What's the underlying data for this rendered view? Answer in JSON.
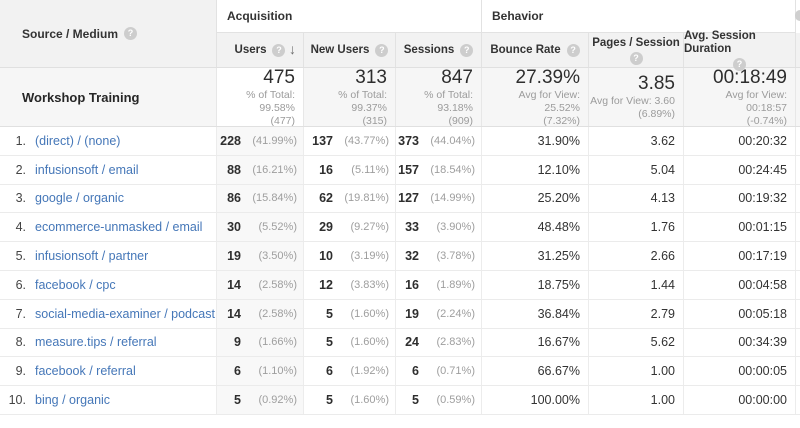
{
  "accent_colors": {
    "link_blue": "#4577b8",
    "header_gray": "#f2f2f2",
    "totals_gray": "#f6f6f6"
  },
  "table": {
    "dimension_header": "Source / Medium",
    "groups": {
      "acquisition": "Acquisition",
      "behavior": "Behavior"
    },
    "columns": {
      "users": "Users",
      "new_users": "New Users",
      "sessions": "Sessions",
      "bounce_rate": "Bounce Rate",
      "pages_session": "Pages / Session",
      "avg_duration": "Avg. Session Duration"
    },
    "sort": {
      "column": "users",
      "direction": "descending",
      "arrow": "↓"
    },
    "help_icon": "?",
    "totals": {
      "label": "Workshop Training",
      "users": {
        "value": "475",
        "sub1": "% of Total: 99.58%",
        "sub2": "(477)"
      },
      "new_users": {
        "value": "313",
        "sub1": "% of Total: 99.37%",
        "sub2": "(315)"
      },
      "sessions": {
        "value": "847",
        "sub1": "% of Total: 93.18%",
        "sub2": "(909)"
      },
      "bounce_rate": {
        "value": "27.39%",
        "sub1": "Avg for View: 25.52%",
        "sub2": "(7.32%)"
      },
      "pages_session": {
        "value": "3.85",
        "sub1": "Avg for View: 3.60",
        "sub2": "(6.89%)"
      },
      "avg_duration": {
        "value": "00:18:49",
        "sub1": "Avg for View: 00:18:57",
        "sub2": "(-0.74%)"
      }
    },
    "rows": [
      {
        "rank": "1.",
        "source": "(direct) / (none)",
        "users": "228",
        "users_pct": "(41.99%)",
        "new_users": "137",
        "new_users_pct": "(43.77%)",
        "sessions": "373",
        "sessions_pct": "(44.04%)",
        "bounce_rate": "31.90%",
        "pages_per_session": "3.62",
        "avg_duration": "00:20:32"
      },
      {
        "rank": "2.",
        "source": "infusionsoft / email",
        "users": "88",
        "users_pct": "(16.21%)",
        "new_users": "16",
        "new_users_pct": "(5.11%)",
        "sessions": "157",
        "sessions_pct": "(18.54%)",
        "bounce_rate": "12.10%",
        "pages_per_session": "5.04",
        "avg_duration": "00:24:45"
      },
      {
        "rank": "3.",
        "source": "google / organic",
        "users": "86",
        "users_pct": "(15.84%)",
        "new_users": "62",
        "new_users_pct": "(19.81%)",
        "sessions": "127",
        "sessions_pct": "(14.99%)",
        "bounce_rate": "25.20%",
        "pages_per_session": "4.13",
        "avg_duration": "00:19:32"
      },
      {
        "rank": "4.",
        "source": "ecommerce-unmasked / email",
        "users": "30",
        "users_pct": "(5.52%)",
        "new_users": "29",
        "new_users_pct": "(9.27%)",
        "sessions": "33",
        "sessions_pct": "(3.90%)",
        "bounce_rate": "48.48%",
        "pages_per_session": "1.76",
        "avg_duration": "00:01:15"
      },
      {
        "rank": "5.",
        "source": "infusionsoft / partner",
        "users": "19",
        "users_pct": "(3.50%)",
        "new_users": "10",
        "new_users_pct": "(3.19%)",
        "sessions": "32",
        "sessions_pct": "(3.78%)",
        "bounce_rate": "31.25%",
        "pages_per_session": "2.66",
        "avg_duration": "00:17:19"
      },
      {
        "rank": "6.",
        "source": "facebook / cpc",
        "users": "14",
        "users_pct": "(2.58%)",
        "new_users": "12",
        "new_users_pct": "(3.83%)",
        "sessions": "16",
        "sessions_pct": "(1.89%)",
        "bounce_rate": "18.75%",
        "pages_per_session": "1.44",
        "avg_duration": "00:04:58"
      },
      {
        "rank": "7.",
        "source": "social-media-examiner / podcast",
        "users": "14",
        "users_pct": "(2.58%)",
        "new_users": "5",
        "new_users_pct": "(1.60%)",
        "sessions": "19",
        "sessions_pct": "(2.24%)",
        "bounce_rate": "36.84%",
        "pages_per_session": "2.79",
        "avg_duration": "00:05:18"
      },
      {
        "rank": "8.",
        "source": "measure.tips / referral",
        "users": "9",
        "users_pct": "(1.66%)",
        "new_users": "5",
        "new_users_pct": "(1.60%)",
        "sessions": "24",
        "sessions_pct": "(2.83%)",
        "bounce_rate": "16.67%",
        "pages_per_session": "5.62",
        "avg_duration": "00:34:39"
      },
      {
        "rank": "9.",
        "source": "facebook / referral",
        "users": "6",
        "users_pct": "(1.10%)",
        "new_users": "6",
        "new_users_pct": "(1.92%)",
        "sessions": "6",
        "sessions_pct": "(0.71%)",
        "bounce_rate": "66.67%",
        "pages_per_session": "1.00",
        "avg_duration": "00:00:05"
      },
      {
        "rank": "10.",
        "source": "bing / organic",
        "users": "5",
        "users_pct": "(0.92%)",
        "new_users": "5",
        "new_users_pct": "(1.60%)",
        "sessions": "5",
        "sessions_pct": "(0.59%)",
        "bounce_rate": "100.00%",
        "pages_per_session": "1.00",
        "avg_duration": "00:00:00"
      }
    ]
  }
}
